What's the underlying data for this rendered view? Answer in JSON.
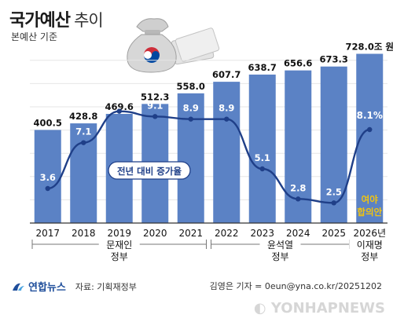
{
  "header": {
    "title_bold": "국가예산",
    "title_light": "추이",
    "subtitle": "본예산 기준"
  },
  "footer": {
    "logo": "연합뉴스",
    "source": "자료: 기획재정부",
    "credit": "김영은 기자 = 0eun@yna.co.kr/20251202",
    "watermark": "YONHAPNEWS"
  },
  "colors": {
    "bar": "#5b82c5",
    "line": "#1f3f88",
    "grid": "#e6e6e6",
    "highlight": "#f1c40f",
    "rate_text": "#ffffff",
    "callout_text": "#1f3f88"
  },
  "icon": "money-bag-icon",
  "chart_data": {
    "type": "bar",
    "categories": [
      "2017",
      "2018",
      "2019",
      "2020",
      "2021",
      "2022",
      "2023",
      "2024",
      "2025",
      "2026년"
    ],
    "values": [
      400.5,
      428.8,
      469.6,
      512.3,
      558.0,
      607.7,
      638.7,
      656.6,
      673.3,
      728.0
    ],
    "value_labels": [
      "400.5",
      "428.8",
      "469.6",
      "512.3",
      "558.0",
      "607.7",
      "638.7",
      "656.6",
      "673.3",
      "728.0조 원"
    ],
    "ylim": [
      0,
      750
    ],
    "yticks": [
      100,
      200,
      300,
      400,
      500,
      600,
      700
    ],
    "grid": true,
    "line_series": {
      "name": "전년 대비 증가율",
      "values": [
        3.6,
        7.1,
        9.5,
        9.1,
        8.9,
        8.9,
        5.1,
        2.8,
        2.5,
        8.1
      ],
      "labels": [
        "3.6",
        "7.1",
        "9.5",
        "9.1",
        "8.9",
        "8.9",
        "5.1",
        "2.8",
        "2.5",
        "8.1%"
      ],
      "ylim": [
        0,
        12
      ]
    },
    "annotation": [
      "여야",
      "합의안"
    ],
    "groups": [
      {
        "label": [
          "문재인",
          "정부"
        ],
        "from": 0,
        "to": 4
      },
      {
        "label": [
          "윤석열",
          "정부"
        ],
        "from": 5,
        "to": 8
      },
      {
        "label": [
          "이재명",
          "정부"
        ],
        "from": 9,
        "to": 9
      }
    ]
  }
}
